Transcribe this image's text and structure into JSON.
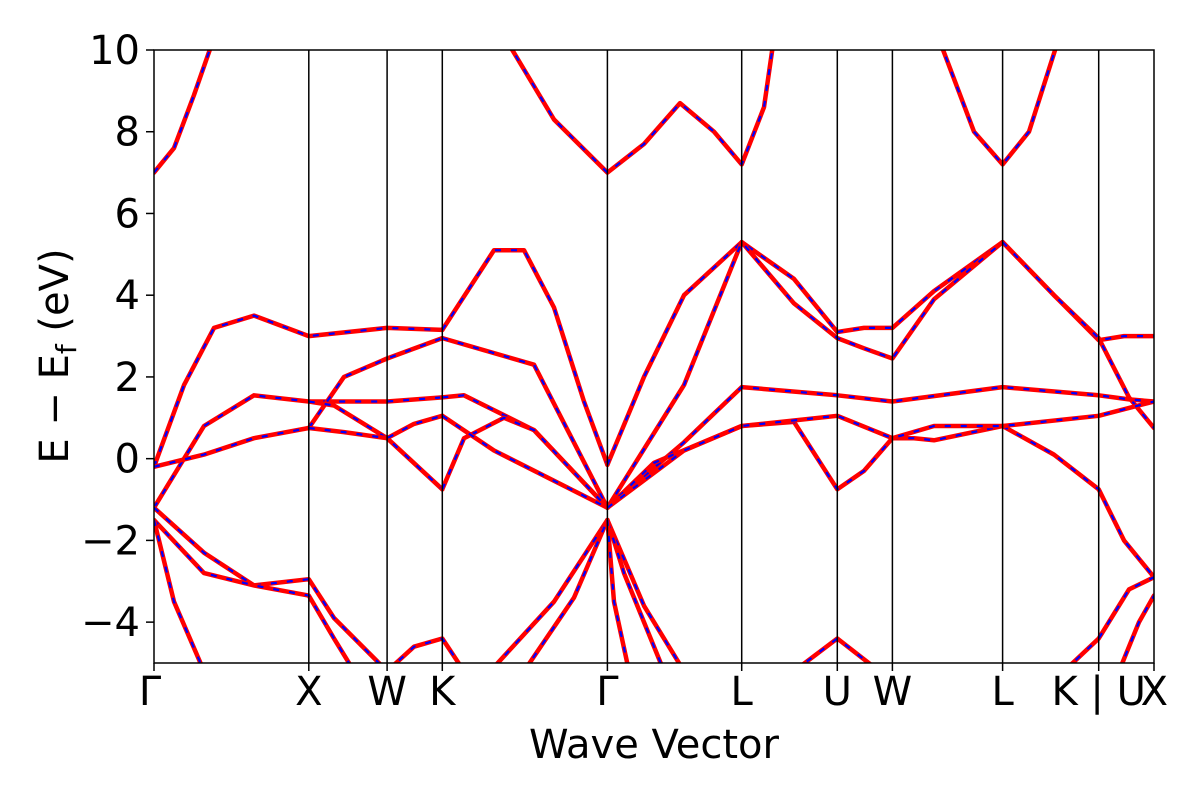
{
  "chart_data": {
    "type": "line",
    "xlabel": "Wave Vector",
    "ylabel": "E − E",
    "ylabel_sub": "f",
    "ylabel_unit": " (eV)",
    "ylim": [
      -5,
      10
    ],
    "yticks": [
      10,
      8,
      6,
      4,
      2,
      0,
      -2,
      -4
    ],
    "ytick_labels": [
      "10",
      "8",
      "6",
      "4",
      "2",
      "0",
      "−2",
      "−4"
    ],
    "xlim": [
      0,
      1
    ],
    "kpoints": [
      {
        "label": "Γ",
        "x": 0.0
      },
      {
        "label": "X",
        "x": 0.1548
      },
      {
        "label": "W",
        "x": 0.2331
      },
      {
        "label": "K",
        "x": 0.2883
      },
      {
        "label": "Γ",
        "x": 0.4534
      },
      {
        "label": "L",
        "x": 0.5877
      },
      {
        "label": "U",
        "x": 0.6833
      },
      {
        "label": "W",
        "x": 0.7384
      },
      {
        "label": "L",
        "x": 0.8486
      },
      {
        "label": "K | U",
        "x": 0.9447
      },
      {
        "label": "X",
        "x": 1.0
      }
    ],
    "line_colors": {
      "series_a": "#ff0000",
      "series_b": "#0000ff"
    },
    "bands": [
      {
        "x": [
          0,
          0.02,
          0.04,
          0.06
        ],
        "y": [
          7.0,
          7.6,
          8.9,
          10.3
        ]
      },
      {
        "x": [
          0.3534,
          0.4,
          0.4534,
          0.49,
          0.526,
          0.56,
          0.5877,
          0.61,
          0.62
        ],
        "y": [
          10.2,
          8.3,
          7.0,
          7.7,
          8.7,
          8.0,
          7.2,
          8.6,
          10.3
        ]
      },
      {
        "x": [
          0.786,
          0.82,
          0.8486,
          0.875,
          0.905
        ],
        "y": [
          10.2,
          8.0,
          7.2,
          8.0,
          10.3
        ]
      },
      {
        "x": [
          0,
          0.03,
          0.06,
          0.1,
          0.1548,
          0.2331,
          0.2883
        ],
        "y": [
          -0.2,
          1.8,
          3.2,
          3.5,
          3.0,
          3.2,
          3.15
        ]
      },
      {
        "x": [
          0.2883,
          0.34,
          0.37,
          0.4,
          0.43,
          0.4534
        ],
        "y": [
          3.15,
          5.1,
          5.1,
          3.7,
          1.4,
          -0.15
        ]
      },
      {
        "x": [
          0.4534,
          0.49,
          0.53,
          0.5877,
          0.64,
          0.6833
        ],
        "y": [
          -0.15,
          2.0,
          4.0,
          5.3,
          4.4,
          3.1
        ]
      },
      {
        "x": [
          0.6833,
          0.71,
          0.7384,
          0.78,
          0.8486
        ],
        "y": [
          3.1,
          3.2,
          3.2,
          4.1,
          5.3
        ]
      },
      {
        "x": [
          0.8486,
          0.9,
          0.9447,
          0.97,
          1.0
        ],
        "y": [
          5.3,
          4.0,
          2.9,
          3.0,
          3.0
        ]
      },
      {
        "x": [
          0,
          0.05,
          0.1,
          0.1548,
          0.2331,
          0.2883
        ],
        "y": [
          -1.2,
          0.8,
          1.55,
          1.4,
          1.4,
          1.5
        ]
      },
      {
        "x": [
          0.2883,
          0.31,
          0.38,
          0.4534
        ],
        "y": [
          1.5,
          1.55,
          0.7,
          -1.2
        ]
      },
      {
        "x": [
          0.4534,
          0.53,
          0.5877,
          0.6833,
          0.7384,
          0.8486,
          0.9447,
          0.975,
          1.0
        ],
        "y": [
          -1.2,
          0.4,
          1.75,
          1.55,
          1.4,
          1.75,
          1.55,
          1.45,
          1.4
        ]
      },
      {
        "x": [
          0,
          0.05,
          0.1,
          0.1548,
          0.1548,
          0.19,
          0.2331,
          0.2883
        ],
        "y": [
          -0.2,
          0.1,
          0.5,
          0.75,
          0.75,
          2.0,
          2.45,
          2.95
        ]
      },
      {
        "x": [
          0.2883,
          0.38,
          0.4534
        ],
        "y": [
          2.95,
          2.3,
          -1.2
        ]
      },
      {
        "x": [
          0.4534,
          0.53,
          0.5877,
          0.64,
          0.6833,
          0.71,
          0.7384,
          0.78,
          0.8486
        ],
        "y": [
          -1.2,
          1.8,
          5.3,
          3.8,
          2.95,
          2.7,
          2.45,
          3.9,
          5.3
        ]
      },
      {
        "x": [
          0.8486,
          0.9,
          0.9447,
          0.975,
          1.0
        ],
        "y": [
          5.3,
          4.0,
          2.95,
          1.5,
          0.75
        ]
      },
      {
        "x": [
          0.1548,
          0.18,
          0.2331,
          0.2883
        ],
        "y": [
          1.4,
          1.3,
          0.5,
          -0.75
        ]
      },
      {
        "x": [
          0.2883,
          0.31,
          0.35,
          0.38,
          0.4534
        ],
        "y": [
          -0.75,
          0.5,
          1.0,
          0.7,
          -1.2
        ]
      },
      {
        "x": [
          0.4534,
          0.5,
          0.5877,
          0.64,
          0.6833,
          0.71,
          0.7384,
          0.76,
          0.78,
          0.8486
        ],
        "y": [
          -1.2,
          -0.1,
          0.8,
          0.9,
          -0.75,
          -0.3,
          0.5,
          0.5,
          0.45,
          0.8
        ]
      },
      {
        "x": [
          0.8486,
          0.9,
          0.9447,
          0.97,
          1.0
        ],
        "y": [
          0.8,
          0.1,
          -0.75,
          -2.0,
          -2.9
        ]
      },
      {
        "x": [
          0.1548,
          0.19,
          0.2331,
          0.26,
          0.2883
        ],
        "y": [
          0.75,
          0.65,
          0.5,
          0.85,
          1.05
        ]
      },
      {
        "x": [
          0.2883,
          0.34,
          0.4534
        ],
        "y": [
          1.05,
          0.2,
          -1.2
        ]
      },
      {
        "x": [
          0.4534,
          0.53,
          0.5877,
          0.6833,
          0.7384,
          0.78,
          0.8486,
          0.9447,
          1.0
        ],
        "y": [
          -1.2,
          0.2,
          0.8,
          1.05,
          0.5,
          0.8,
          0.8,
          1.05,
          1.4
        ]
      },
      {
        "x": [
          0,
          0.05,
          0.1,
          0.1548,
          0.18,
          0.2331
        ],
        "y": [
          -1.2,
          -2.3,
          -3.1,
          -2.95,
          -3.9,
          -5.2
        ]
      },
      {
        "x": [
          0,
          0.05,
          0.1,
          0.1548,
          0.18,
          0.2
        ],
        "y": [
          -1.5,
          -2.8,
          -3.1,
          -3.35,
          -4.4,
          -5.2
        ]
      },
      {
        "x": [
          0,
          0.02,
          0.05
        ],
        "y": [
          -1.5,
          -3.5,
          -5.2
        ]
      },
      {
        "x": [
          0.2331,
          0.26,
          0.2883,
          0.31
        ],
        "y": [
          -5.2,
          -4.6,
          -4.4,
          -5.2
        ]
      },
      {
        "x": [
          0.34,
          0.4,
          0.4534,
          0.49,
          0.53
        ],
        "y": [
          -5.1,
          -3.5,
          -1.5,
          -3.6,
          -5.2
        ]
      },
      {
        "x": [
          0.37,
          0.42,
          0.4534,
          0.47,
          0.51
        ],
        "y": [
          -5.2,
          -3.4,
          -1.5,
          -2.8,
          -5.2
        ]
      },
      {
        "x": [
          0.4534,
          0.46,
          0.475
        ],
        "y": [
          -1.5,
          -3.5,
          -5.2
        ]
      },
      {
        "x": [
          0.64,
          0.6833,
          0.72
        ],
        "y": [
          -5.2,
          -4.4,
          -5.1
        ]
      },
      {
        "x": [
          0.91,
          0.9447,
          0.975,
          1.0
        ],
        "y": [
          -5.2,
          -4.4,
          -3.2,
          -2.9
        ]
      },
      {
        "x": [
          0.965,
          0.985,
          1.0
        ],
        "y": [
          -5.2,
          -4.0,
          -3.35
        ]
      }
    ]
  }
}
